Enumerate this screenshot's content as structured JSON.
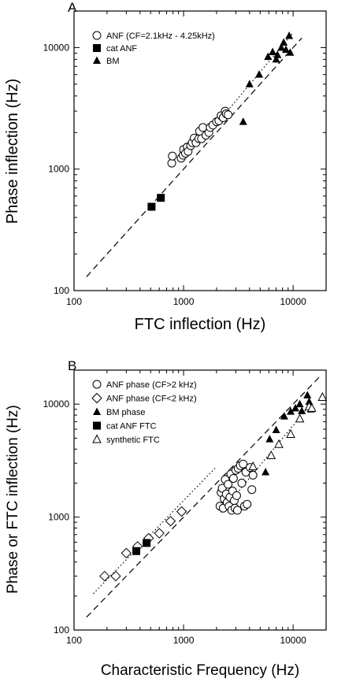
{
  "chart_data": [
    {
      "panel": "A",
      "type": "scatter",
      "xlabel": "FTC inflection (Hz)",
      "ylabel": "Phase inflection (Hz)",
      "xscale": "log",
      "yscale": "log",
      "xlim": [
        100,
        20000
      ],
      "ylim": [
        100,
        20000
      ],
      "x_ticks": [
        100,
        1000,
        10000
      ],
      "x_tick_labels": [
        "100",
        "1000",
        "10000"
      ],
      "y_ticks": [
        100,
        1000,
        10000
      ],
      "y_tick_labels": [
        "100",
        "1000",
        "10000"
      ],
      "legend_position": "top-left",
      "series": [
        {
          "name": "ANF (CF=2.1kHz - 4.25kHz)",
          "marker": "open-circle",
          "points": [
            [
              780,
              1120
            ],
            [
              790,
              1280
            ],
            [
              950,
              1230
            ],
            [
              990,
              1300
            ],
            [
              1000,
              1450
            ],
            [
              1040,
              1350
            ],
            [
              1080,
              1520
            ],
            [
              1100,
              1400
            ],
            [
              1160,
              1560
            ],
            [
              1200,
              1650
            ],
            [
              1250,
              1800
            ],
            [
              1300,
              1650
            ],
            [
              1380,
              1780
            ],
            [
              1400,
              2050
            ],
            [
              1460,
              1780
            ],
            [
              1500,
              2200
            ],
            [
              1600,
              1900
            ],
            [
              1700,
              2000
            ],
            [
              1750,
              2200
            ],
            [
              1850,
              2300
            ],
            [
              2000,
              2450
            ],
            [
              2100,
              2500
            ],
            [
              2200,
              2750
            ],
            [
              2300,
              2650
            ],
            [
              2400,
              3000
            ],
            [
              2450,
              2850
            ],
            [
              2550,
              2800
            ]
          ]
        },
        {
          "name": "cat ANF",
          "marker": "filled-square",
          "points": [
            [
              510,
              490
            ],
            [
              620,
              580
            ]
          ]
        },
        {
          "name": "BM",
          "marker": "filled-triangle",
          "points": [
            [
              3500,
              2450
            ],
            [
              4000,
              5000
            ],
            [
              4900,
              6000
            ],
            [
              5900,
              8400
            ],
            [
              6500,
              9200
            ],
            [
              7000,
              8000
            ],
            [
              7200,
              8700
            ],
            [
              7800,
              10000
            ],
            [
              8200,
              11000
            ],
            [
              8600,
              9600
            ],
            [
              9200,
              12500
            ],
            [
              9400,
              9100
            ]
          ]
        }
      ],
      "lines": [
        {
          "style": "dashed",
          "from": [
            130,
            130
          ],
          "to": [
            12000,
            12000
          ]
        },
        {
          "style": "dotted",
          "from": [
            1800,
            2100
          ],
          "to": [
            9800,
            13000
          ]
        }
      ]
    },
    {
      "panel": "B",
      "type": "scatter",
      "xlabel": "Characteristic Frequency (Hz)",
      "ylabel": "Phase or FTC inflection (Hz)",
      "xscale": "log",
      "yscale": "log",
      "xlim": [
        100,
        20000
      ],
      "ylim": [
        100,
        20000
      ],
      "x_ticks": [
        100,
        1000,
        10000
      ],
      "x_tick_labels": [
        "100",
        "1000",
        "10000"
      ],
      "y_ticks": [
        100,
        1000,
        10000
      ],
      "y_tick_labels": [
        "100",
        "1000",
        "10000"
      ],
      "legend_position": "top-left",
      "series": [
        {
          "name": "ANF phase (CF>2 kHz)",
          "marker": "open-circle",
          "points": [
            [
              2150,
              1250
            ],
            [
              2200,
              1650
            ],
            [
              2250,
              1800
            ],
            [
              2300,
              1200
            ],
            [
              2350,
              1450
            ],
            [
              2400,
              2150
            ],
            [
              2450,
              1600
            ],
            [
              2500,
              1350
            ],
            [
              2550,
              1950
            ],
            [
              2600,
              1250
            ],
            [
              2650,
              1500
            ],
            [
              2700,
              2400
            ],
            [
              2750,
              1150
            ],
            [
              2800,
              1700
            ],
            [
              2850,
              2200
            ],
            [
              2900,
              1400
            ],
            [
              2950,
              1200
            ],
            [
              3000,
              2600
            ],
            [
              3050,
              1550
            ],
            [
              3100,
              1150
            ],
            [
              3150,
              2700
            ],
            [
              3300,
              2850
            ],
            [
              3400,
              2000
            ],
            [
              3500,
              2950
            ],
            [
              3600,
              1250
            ],
            [
              3700,
              2500
            ],
            [
              3800,
              1300
            ],
            [
              4050,
              2750
            ],
            [
              4200,
              1750
            ],
            [
              4300,
              2350
            ]
          ]
        },
        {
          "name": "ANF phase (CF<2 kHz)",
          "marker": "open-diamond",
          "points": [
            [
              190,
              300
            ],
            [
              240,
              300
            ],
            [
              300,
              480
            ],
            [
              380,
              550
            ],
            [
              480,
              650
            ],
            [
              600,
              720
            ],
            [
              760,
              920
            ],
            [
              960,
              1120
            ]
          ]
        },
        {
          "name": "BM phase",
          "marker": "filled-triangle",
          "points": [
            [
              5600,
              2500
            ],
            [
              6100,
              4900
            ],
            [
              7000,
              5900
            ],
            [
              8300,
              7800
            ],
            [
              9500,
              8600
            ],
            [
              10500,
              9200
            ],
            [
              11500,
              10000
            ],
            [
              12000,
              8700
            ],
            [
              13500,
              12000
            ],
            [
              14000,
              10500
            ],
            [
              14500,
              9000
            ]
          ]
        },
        {
          "name": "cat ANF FTC",
          "marker": "filled-square",
          "points": [
            [
              370,
              500
            ],
            [
              460,
              590
            ]
          ]
        },
        {
          "name": "synthetic FTC",
          "marker": "open-triangle",
          "points": [
            [
              4300,
              2800
            ],
            [
              6300,
              3500
            ],
            [
              7400,
              4400
            ],
            [
              9500,
              5400
            ],
            [
              11500,
              7400
            ],
            [
              14000,
              9500
            ],
            [
              14800,
              9200
            ],
            [
              18500,
              11500
            ]
          ]
        }
      ],
      "lines": [
        {
          "style": "dashed",
          "from": [
            130,
            130
          ],
          "to": [
            18000,
            18000
          ]
        },
        {
          "style": "dotted",
          "from": [
            150,
            210
          ],
          "to": [
            2000,
            2800
          ]
        },
        {
          "style": "dotted",
          "from": [
            2200,
            1100
          ],
          "to": [
            14000,
            9600
          ]
        }
      ]
    }
  ]
}
